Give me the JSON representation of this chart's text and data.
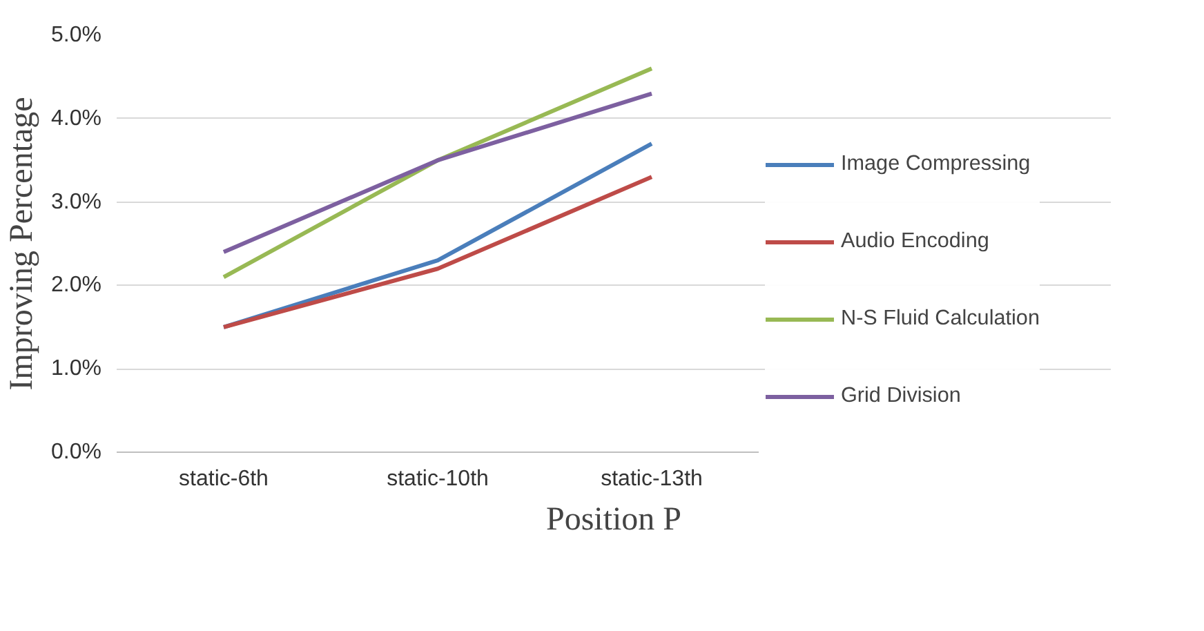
{
  "chart_data": {
    "type": "line",
    "xlabel": "Position P",
    "ylabel": "Improving Percentage",
    "categories": [
      "static-6th",
      "static-10th",
      "static-13th"
    ],
    "series": [
      {
        "name": "Image Compressing",
        "color": "#4a7ebb",
        "values": [
          1.5,
          2.3,
          3.7
        ]
      },
      {
        "name": "Audio Encoding",
        "color": "#be4b48",
        "values": [
          1.5,
          2.2,
          3.3
        ]
      },
      {
        "name": "N-S Fluid Calculation",
        "color": "#98b954",
        "values": [
          2.1,
          3.5,
          4.6
        ]
      },
      {
        "name": "Grid Division",
        "color": "#7d60a0",
        "values": [
          2.4,
          3.5,
          4.3
        ]
      }
    ],
    "ylim": [
      0,
      5
    ],
    "yticks": [
      {
        "value": 0,
        "label": "0.0%"
      },
      {
        "value": 1,
        "label": "1.0%"
      },
      {
        "value": 2,
        "label": "2.0%"
      },
      {
        "value": 3,
        "label": "3.0%"
      },
      {
        "value": 4,
        "label": "4.0%"
      },
      {
        "value": 5,
        "label": "5.0%"
      }
    ],
    "grid": "y",
    "legend": "right",
    "marker": "none",
    "line_style": "solid"
  }
}
